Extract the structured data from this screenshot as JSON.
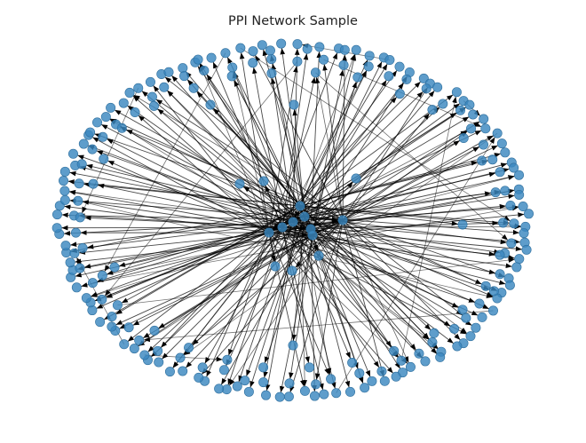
{
  "figure": {
    "title": "PPI Network Sample"
  },
  "style": {
    "node_color": "#3a87c0",
    "node_edge_color": "#2e6f9e",
    "edge_color": "#000000"
  }
}
